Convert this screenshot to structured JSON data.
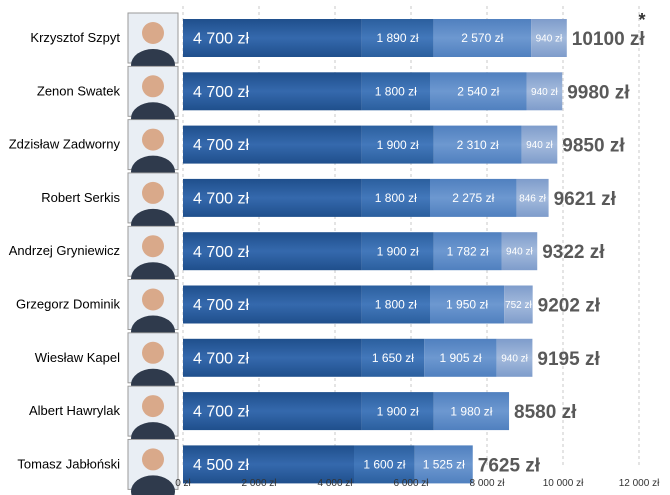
{
  "chart_data": {
    "type": "bar",
    "orientation": "horizontal",
    "stacked": true,
    "categories": [
      "Krzysztof Szpyt",
      "Zenon Swatek",
      "Zdzisław Zadworny",
      "Robert Serkis",
      "Andrzej Gryniewicz",
      "Grzegorz Dominik",
      "Wiesław Kapel",
      "Albert Hawrylak",
      "Tomasz Jabłoński"
    ],
    "series": [
      {
        "values": [
          4700,
          4700,
          4700,
          4700,
          4700,
          4700,
          4700,
          4700,
          4500
        ],
        "labels": [
          "4 700 zł",
          "4 700 zł",
          "4 700 zł",
          "4 700 zł",
          "4 700 zł",
          "4 700 zł",
          "4 700 zł",
          "4 700 zł",
          "4 500 zł"
        ],
        "color": "#2B5F9E"
      },
      {
        "values": [
          1890,
          1800,
          1900,
          1800,
          1900,
          1800,
          1650,
          1900,
          1600
        ],
        "labels": [
          "1 890 zł",
          "1 800 zł",
          "1 900 zł",
          "1 800 zł",
          "1 900 zł",
          "1 800 zł",
          "1 650 zł",
          "1 900 zł",
          "1 600 zł"
        ],
        "color": "#3A70B0"
      },
      {
        "values": [
          2570,
          2540,
          2310,
          2275,
          1782,
          1950,
          1905,
          1980,
          1525
        ],
        "labels": [
          "2 570 zł",
          "2 540 zł",
          "2 310 zł",
          "2 275 zł",
          "1 782 zł",
          "1 950 zł",
          "1 905 zł",
          "1 980 zł",
          "1 525 zł"
        ],
        "color": "#5E8BC6"
      },
      {
        "values": [
          940,
          940,
          940,
          846,
          940,
          752,
          940,
          0,
          0
        ],
        "labels": [
          "940 zł",
          "940 zł",
          "940 zł",
          "846 zł",
          "940 zł",
          "752 zł",
          "940 zł",
          "",
          ""
        ],
        "color": "#8FA9D2"
      }
    ],
    "totals": [
      "10100 zł",
      "9980 zł",
      "9850 zł",
      "9621 zł",
      "9322 zł",
      "9202 zł",
      "9195 zł",
      "8580 zł",
      "7625 zł"
    ],
    "annotation": "*",
    "xlim": [
      0,
      12000
    ],
    "xticks": [
      0,
      2000,
      4000,
      6000,
      8000,
      10000,
      12000
    ],
    "xtick_labels": [
      "0 zł",
      "2 000 zł",
      "4 000 zł",
      "6 000 zł",
      "8 000 zł",
      "10 000 zł",
      "12 000 zł"
    ],
    "grid": "vertical-dashed",
    "title": "",
    "xlabel": "",
    "ylabel": ""
  }
}
